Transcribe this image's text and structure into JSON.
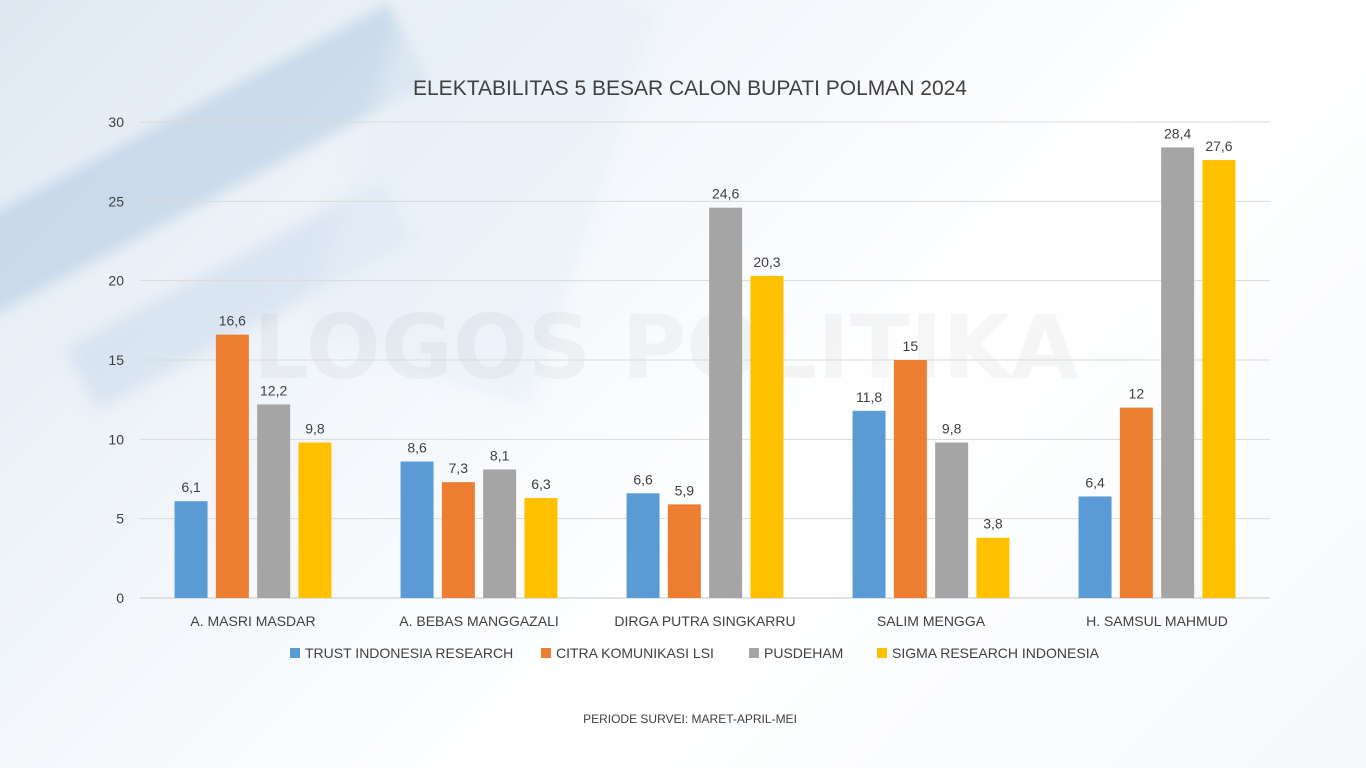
{
  "watermark": "LOGOS POLITIKA",
  "footer_note": "PERIODE SURVEI: MARET-APRIL-MEI",
  "chart_data": {
    "type": "bar",
    "title": "ELEKTABILITAS 5 BESAR CALON BUPATI POLMAN 2024",
    "xlabel": "",
    "ylabel": "",
    "ylim": [
      0,
      30
    ],
    "yticks": [
      0,
      5,
      10,
      15,
      20,
      25,
      30
    ],
    "grid": true,
    "legend_position": "bottom",
    "categories": [
      "A. MASRI MASDAR",
      "A. BEBAS MANGGAZALI",
      "DIRGA PUTRA SINGKARRU",
      "SALIM MENGGA",
      "H. SAMSUL MAHMUD"
    ],
    "series": [
      {
        "name": "TRUST INDONESIA RESEARCH",
        "color": "#5b9bd5",
        "values": [
          6.1,
          8.6,
          6.6,
          11.8,
          6.4
        ],
        "labels": [
          "6,1",
          "8,6",
          "6,6",
          "11,8",
          "6,4"
        ]
      },
      {
        "name": "CITRA KOMUNIKASI LSI",
        "color": "#ed7d31",
        "values": [
          16.6,
          7.3,
          5.9,
          15,
          12
        ],
        "labels": [
          "16,6",
          "7,3",
          "5,9",
          "15",
          "12"
        ]
      },
      {
        "name": "PUSDEHAM",
        "color": "#a5a5a5",
        "values": [
          12.2,
          8.1,
          24.6,
          9.8,
          28.4
        ],
        "labels": [
          "12,2",
          "8,1",
          "24,6",
          "9,8",
          "28,4"
        ]
      },
      {
        "name": "SIGMA RESEARCH INDONESIA",
        "color": "#ffc000",
        "values": [
          9.8,
          6.3,
          20.3,
          3.8,
          27.6
        ],
        "labels": [
          "9,8",
          "6,3",
          "20,3",
          "3,8",
          "27,6"
        ]
      }
    ]
  }
}
